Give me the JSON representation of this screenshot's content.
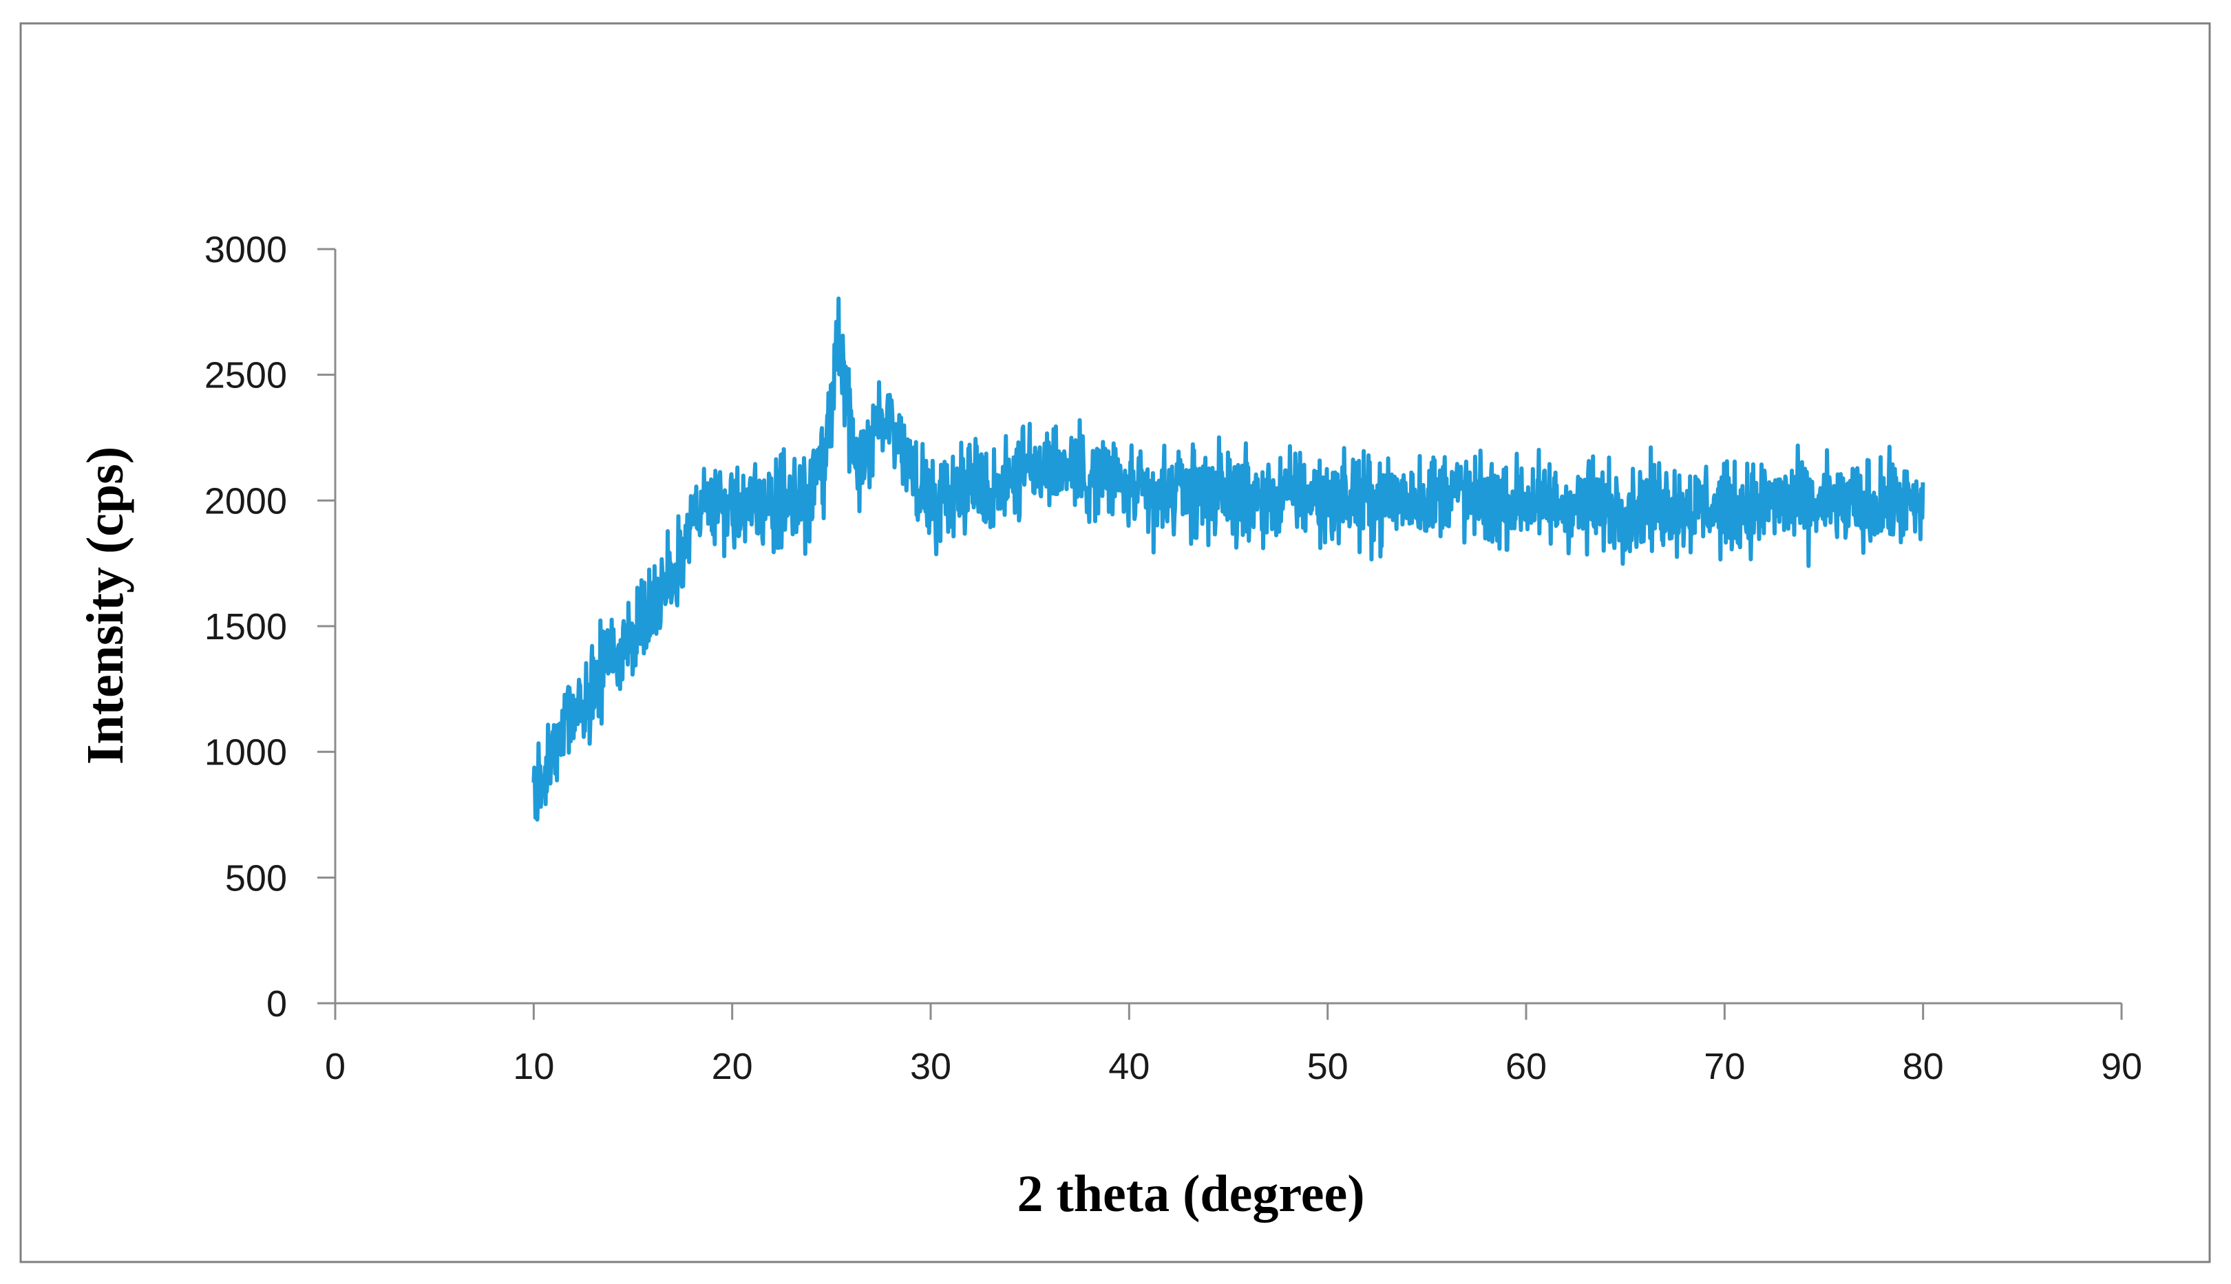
{
  "chart_data": {
    "type": "line",
    "title": "",
    "xlabel": "2 theta (degree)",
    "ylabel": "Intensity (cps)",
    "xlim": [
      0,
      90
    ],
    "ylim": [
      0,
      3000
    ],
    "x_ticks": [
      0,
      10,
      20,
      30,
      40,
      50,
      60,
      70,
      80,
      90
    ],
    "y_ticks": [
      0,
      500,
      1000,
      1500,
      2000,
      2500,
      3000
    ],
    "x_tick_labels": [
      "0",
      "10",
      "20",
      "30",
      "40",
      "50",
      "60",
      "70",
      "80",
      "90"
    ],
    "y_tick_labels": [
      "0",
      "500",
      "1000",
      "1500",
      "2000",
      "2500",
      "3000"
    ],
    "grid": false,
    "legend": "none",
    "colors": {
      "series": "#1f9ad8",
      "axis": "#8c8c8c",
      "frame": "#7f7f7f"
    },
    "series": [
      {
        "x": [
          10,
          10.5,
          11,
          11.5,
          12,
          12.5,
          13,
          13.5,
          14,
          14.5,
          15,
          15.5,
          16,
          16.5,
          17,
          17.5,
          18,
          18.5,
          19,
          19.5,
          20,
          20.5,
          21,
          21.5,
          22,
          22.5,
          23,
          23.5,
          24,
          24.5,
          25,
          25.3,
          25.6,
          26,
          26.5,
          27,
          27.5,
          28,
          28.5,
          29,
          29.5,
          30,
          31,
          32,
          33,
          34,
          35,
          36,
          37,
          38,
          39,
          40,
          41,
          42,
          43,
          44,
          45,
          46,
          47,
          48,
          49,
          50,
          51,
          52,
          53,
          54,
          55,
          56,
          57,
          58,
          59,
          60,
          61,
          62,
          63,
          64,
          65,
          66,
          67,
          68,
          69,
          70,
          71,
          72,
          73,
          74,
          75,
          76,
          77,
          78,
          79,
          80
        ],
        "y": [
          850,
          900,
          1000,
          1100,
          1150,
          1200,
          1250,
          1320,
          1380,
          1420,
          1480,
          1520,
          1580,
          1650,
          1700,
          1800,
          1980,
          1950,
          1990,
          1970,
          1980,
          1960,
          1990,
          1970,
          1980,
          2000,
          1990,
          2010,
          2030,
          2100,
          2300,
          2650,
          2500,
          2250,
          2100,
          2250,
          2300,
          2350,
          2200,
          2100,
          2050,
          2000,
          2050,
          2080,
          2030,
          2100,
          2120,
          2150,
          2130,
          2100,
          2080,
          2050,
          2000,
          2020,
          2050,
          2030,
          2020,
          2010,
          2000,
          2030,
          2020,
          2000,
          2010,
          1990,
          2000,
          2020,
          2000,
          2050,
          2020,
          1980,
          1990,
          2000,
          1990,
          1970,
          1980,
          1990,
          1960,
          1980,
          1990,
          1970,
          1980,
          1960,
          1970,
          1980,
          2000,
          1970,
          1980,
          1990,
          1970,
          1980,
          1990,
          1960
        ],
        "noise_amplitude": 130
      }
    ]
  }
}
